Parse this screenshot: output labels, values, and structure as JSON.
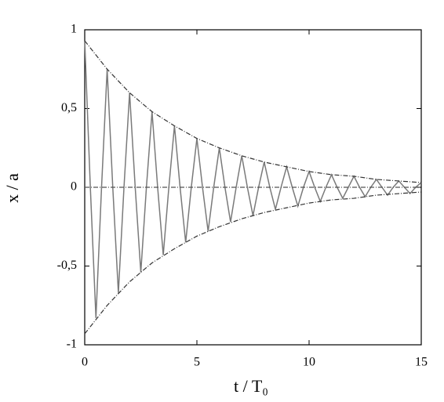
{
  "chart_data": {
    "type": "line",
    "xlabel": "t / T₀",
    "ylabel": "x / a",
    "xlim": [
      0,
      15
    ],
    "ylim": [
      -1,
      1
    ],
    "xticks": [
      0,
      5,
      10,
      15
    ],
    "yticks": [
      {
        "value": 1,
        "label": "1"
      },
      {
        "value": 0.5,
        "label": "0,5"
      },
      0,
      {
        "value": -0.5,
        "label": "-0,5"
      },
      {
        "value": -1,
        "label": "-1"
      }
    ],
    "series": [
      {
        "color": "#7a7a7a",
        "dash": false,
        "x": [
          0,
          0.25,
          0.5,
          0.75,
          1,
          1.25,
          1.5,
          1.75,
          2,
          2.25,
          2.5,
          2.75,
          3,
          3.25,
          3.5,
          3.75,
          4,
          4.25,
          4.5,
          4.75,
          5,
          5.25,
          5.5,
          5.75,
          6,
          6.25,
          6.5,
          6.75,
          7,
          7.25,
          7.5,
          7.75,
          8,
          8.25,
          8.5,
          8.75,
          9,
          9.25,
          9.5,
          9.75,
          10,
          10.25,
          10.5,
          10.75,
          11,
          11.25,
          11.5,
          11.75,
          12,
          12.25,
          12.5,
          12.75,
          13,
          13.25,
          13.5,
          13.75,
          14,
          14.25,
          14.5,
          14.75,
          15
        ],
        "values": [
          0.93,
          0,
          -0.83,
          0,
          0.75,
          0,
          -0.67,
          0,
          0.6,
          0,
          -0.54,
          0,
          0.48,
          0,
          -0.43,
          0,
          0.39,
          0,
          -0.35,
          0,
          0.31,
          0,
          -0.28,
          0,
          0.25,
          0,
          -0.22,
          0,
          0.2,
          0,
          -0.18,
          0,
          0.16,
          0,
          -0.14,
          0,
          0.13,
          0,
          -0.12,
          0,
          0.1,
          0,
          -0.09,
          0,
          0.08,
          0,
          -0.07,
          0,
          0.07,
          0,
          -0.06,
          0,
          0.05,
          0,
          -0.05,
          0,
          0.04,
          0,
          -0.04,
          0,
          0.03
        ]
      },
      {
        "color": "#333333",
        "dash": true,
        "x": [
          0,
          1,
          2,
          3,
          4,
          5,
          6,
          7,
          8,
          9,
          10,
          11,
          12,
          13,
          14,
          15
        ],
        "values": [
          0.93,
          0.75,
          0.6,
          0.48,
          0.39,
          0.31,
          0.25,
          0.2,
          0.16,
          0.13,
          0.1,
          0.08,
          0.07,
          0.05,
          0.04,
          0.03
        ]
      },
      {
        "color": "#333333",
        "dash": true,
        "x": [
          0,
          1,
          2,
          3,
          4,
          5,
          6,
          7,
          8,
          9,
          10,
          11,
          12,
          13,
          14,
          15
        ],
        "values": [
          -0.93,
          -0.75,
          -0.6,
          -0.48,
          -0.39,
          -0.31,
          -0.25,
          -0.2,
          -0.16,
          -0.13,
          -0.1,
          -0.08,
          -0.07,
          -0.05,
          -0.04,
          -0.03
        ]
      },
      {
        "color": "#555555",
        "dash": true,
        "x": [
          0,
          15
        ],
        "values": [
          0,
          0
        ]
      }
    ]
  }
}
